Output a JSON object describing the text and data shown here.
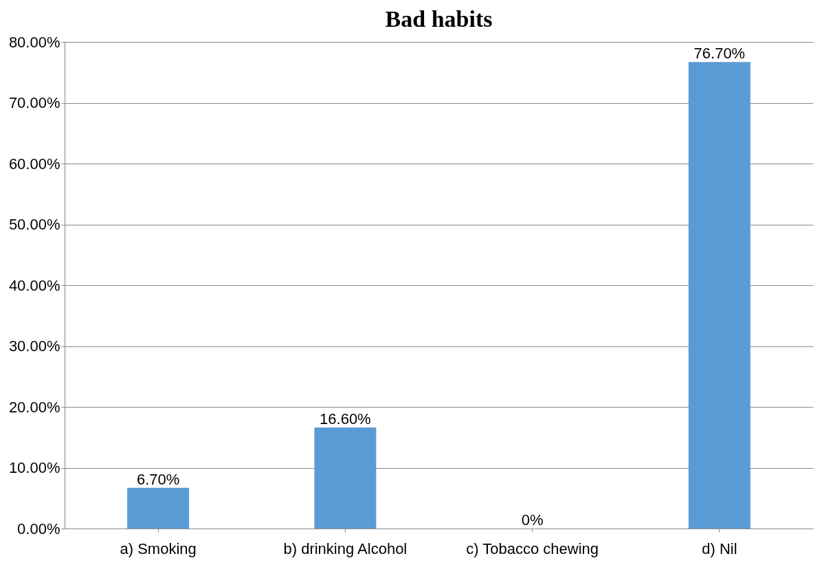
{
  "chart_data": {
    "type": "bar",
    "title": "Bad habits",
    "categories": [
      "a) Smoking",
      "b) drinking Alcohol",
      "c) Tobacco chewing",
      "d) Nil"
    ],
    "values": [
      6.7,
      16.6,
      0,
      76.7
    ],
    "value_labels": [
      "6.70%",
      "16.60%",
      "0%",
      "76.70%"
    ],
    "color": "#5b9bd5",
    "ylim": [
      0,
      80
    ],
    "yticks": [
      {
        "value": 0,
        "label": "0.00%"
      },
      {
        "value": 10,
        "label": "10.00%"
      },
      {
        "value": 20,
        "label": "20.00%"
      },
      {
        "value": 30,
        "label": "30.00%"
      },
      {
        "value": 40,
        "label": "40.00%"
      },
      {
        "value": 50,
        "label": "50.00%"
      },
      {
        "value": 60,
        "label": "60.00%"
      },
      {
        "value": 70,
        "label": "70.00%"
      },
      {
        "value": 80,
        "label": "80.00%"
      }
    ],
    "grid": "y"
  }
}
